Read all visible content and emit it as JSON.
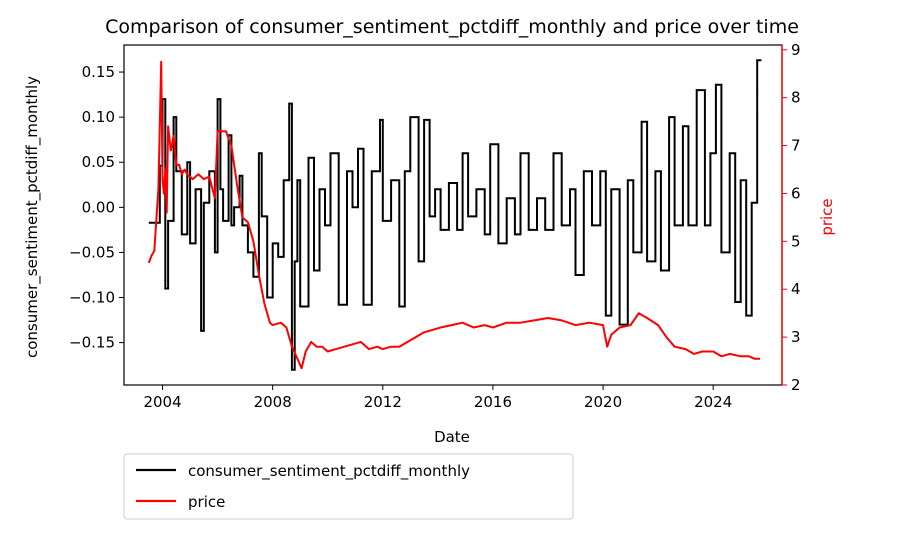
{
  "chart_data": {
    "type": "line",
    "title": "Comparison of consumer_sentiment_pctdiff_monthly and price over time",
    "xlabel": "Date",
    "ylabel_left": "consumer_sentiment_pctdiff_monthly",
    "ylabel_right": "price",
    "x_ticks": [
      "2004",
      "2008",
      "2012",
      "2016",
      "2020",
      "2024"
    ],
    "x_tick_values": [
      2004,
      2008,
      2012,
      2016,
      2020,
      2024
    ],
    "xlim": [
      2002.6,
      2026.5
    ],
    "y_left_ticks": [
      "0.15",
      "0.10",
      "0.05",
      "0.00",
      "−0.05",
      "−0.10",
      "−0.15"
    ],
    "y_left_tick_values": [
      0.15,
      0.1,
      0.05,
      0.0,
      -0.05,
      -0.1,
      -0.15
    ],
    "ylim_left": [
      -0.197,
      0.18
    ],
    "y_right_ticks": [
      "2",
      "3",
      "4",
      "5",
      "6",
      "7",
      "8",
      "9"
    ],
    "y_right_tick_values": [
      2,
      3,
      4,
      5,
      6,
      7,
      8,
      9
    ],
    "ylim_right": [
      2.0,
      9.1
    ],
    "grid": false,
    "legend_placement": "below-left",
    "colors": {
      "sentiment": "#000000",
      "price": "#ff0000",
      "right_axis": "#ff0000"
    },
    "series": [
      {
        "name": "consumer_sentiment_pctdiff_monthly",
        "axis": "left",
        "step": true,
        "x": [
          2003.5,
          2003.9,
          2004.0,
          2004.1,
          2004.2,
          2004.4,
          2004.5,
          2004.7,
          2004.9,
          2005.0,
          2005.2,
          2005.4,
          2005.5,
          2005.7,
          2005.9,
          2006.0,
          2006.1,
          2006.2,
          2006.4,
          2006.5,
          2006.6,
          2006.8,
          2006.9,
          2007.1,
          2007.3,
          2007.5,
          2007.6,
          2007.8,
          2008.0,
          2008.2,
          2008.4,
          2008.6,
          2008.7,
          2008.8,
          2008.9,
          2009.0,
          2009.3,
          2009.5,
          2009.7,
          2009.9,
          2010.1,
          2010.4,
          2010.7,
          2010.9,
          2011.1,
          2011.3,
          2011.6,
          2011.9,
          2012.0,
          2012.3,
          2012.6,
          2012.8,
          2013.0,
          2013.3,
          2013.5,
          2013.7,
          2013.9,
          2014.1,
          2014.4,
          2014.7,
          2014.9,
          2015.1,
          2015.4,
          2015.7,
          2015.9,
          2016.2,
          2016.5,
          2016.8,
          2017.0,
          2017.3,
          2017.6,
          2017.9,
          2018.2,
          2018.5,
          2018.8,
          2019.0,
          2019.3,
          2019.6,
          2019.9,
          2020.1,
          2020.3,
          2020.6,
          2020.9,
          2021.1,
          2021.4,
          2021.6,
          2021.9,
          2022.1,
          2022.4,
          2022.6,
          2022.9,
          2023.1,
          2023.4,
          2023.7,
          2023.9,
          2024.1,
          2024.3,
          2024.6,
          2024.8,
          2025.0,
          2025.2,
          2025.4,
          2025.6
        ],
        "values": [
          -0.017,
          0.046,
          0.12,
          -0.09,
          -0.015,
          0.1,
          0.04,
          -0.03,
          0.05,
          -0.04,
          0.02,
          -0.137,
          0.005,
          0.04,
          -0.05,
          0.12,
          0.02,
          -0.015,
          0.08,
          -0.02,
          0.0,
          0.035,
          -0.02,
          -0.05,
          -0.077,
          0.06,
          -0.01,
          -0.1,
          -0.04,
          -0.055,
          0.03,
          0.115,
          -0.18,
          -0.06,
          0.03,
          -0.11,
          0.055,
          -0.07,
          0.02,
          -0.02,
          0.06,
          -0.108,
          0.04,
          0.0,
          0.065,
          -0.108,
          0.04,
          0.097,
          -0.015,
          0.03,
          -0.11,
          0.04,
          0.1,
          -0.06,
          0.097,
          -0.01,
          0.02,
          -0.025,
          0.027,
          -0.025,
          0.06,
          -0.01,
          0.02,
          -0.03,
          0.07,
          -0.04,
          0.01,
          -0.03,
          0.06,
          -0.025,
          0.01,
          -0.025,
          0.06,
          -0.02,
          0.02,
          -0.075,
          0.04,
          -0.02,
          0.04,
          -0.12,
          0.02,
          -0.13,
          0.03,
          -0.05,
          0.095,
          -0.06,
          0.04,
          -0.07,
          0.1,
          -0.02,
          0.09,
          -0.02,
          0.13,
          -0.02,
          0.06,
          0.136,
          -0.05,
          0.06,
          -0.105,
          0.03,
          -0.12,
          0.005,
          0.163
        ]
      },
      {
        "name": "price",
        "axis": "right",
        "step": false,
        "x": [
          2003.5,
          2003.6,
          2003.7,
          2003.85,
          2003.95,
          2004.0,
          2004.05,
          2004.1,
          2004.15,
          2004.2,
          2004.3,
          2004.4,
          2004.5,
          2004.6,
          2004.7,
          2004.8,
          2004.9,
          2005.1,
          2005.3,
          2005.5,
          2005.7,
          2005.9,
          2006.0,
          2006.1,
          2006.3,
          2006.5,
          2006.7,
          2006.9,
          2007.1,
          2007.3,
          2007.5,
          2007.7,
          2007.9,
          2008.0,
          2008.3,
          2008.5,
          2008.7,
          2008.9,
          2009.05,
          2009.2,
          2009.4,
          2009.6,
          2009.8,
          2010.0,
          2010.3,
          2010.6,
          2010.9,
          2011.2,
          2011.5,
          2011.8,
          2012.0,
          2012.3,
          2012.6,
          2012.9,
          2013.2,
          2013.5,
          2013.8,
          2014.1,
          2014.5,
          2014.9,
          2015.3,
          2015.7,
          2016.0,
          2016.5,
          2017.0,
          2017.5,
          2018.0,
          2018.5,
          2019.0,
          2019.5,
          2020.0,
          2020.15,
          2020.3,
          2020.6,
          2021.0,
          2021.3,
          2021.6,
          2022.0,
          2022.3,
          2022.6,
          2023.0,
          2023.3,
          2023.6,
          2024.0,
          2024.3,
          2024.6,
          2025.0,
          2025.3,
          2025.5,
          2025.7
        ],
        "values": [
          4.55,
          4.7,
          4.8,
          6.1,
          8.75,
          6.3,
          6.0,
          6.5,
          5.6,
          7.4,
          6.9,
          7.2,
          6.6,
          6.6,
          6.4,
          6.5,
          6.4,
          6.3,
          6.4,
          6.3,
          6.35,
          5.9,
          7.3,
          7.3,
          7.3,
          7.0,
          6.2,
          5.5,
          5.4,
          5.0,
          4.3,
          3.7,
          3.3,
          3.25,
          3.3,
          3.2,
          2.8,
          2.55,
          2.35,
          2.7,
          2.9,
          2.8,
          2.8,
          2.7,
          2.75,
          2.8,
          2.85,
          2.9,
          2.75,
          2.8,
          2.75,
          2.8,
          2.8,
          2.9,
          3.0,
          3.1,
          3.15,
          3.2,
          3.25,
          3.3,
          3.2,
          3.25,
          3.2,
          3.3,
          3.3,
          3.35,
          3.4,
          3.35,
          3.25,
          3.3,
          3.25,
          2.8,
          3.05,
          3.2,
          3.25,
          3.5,
          3.4,
          3.25,
          3.0,
          2.8,
          2.75,
          2.65,
          2.7,
          2.7,
          2.6,
          2.65,
          2.6,
          2.6,
          2.55,
          2.55
        ]
      }
    ]
  }
}
